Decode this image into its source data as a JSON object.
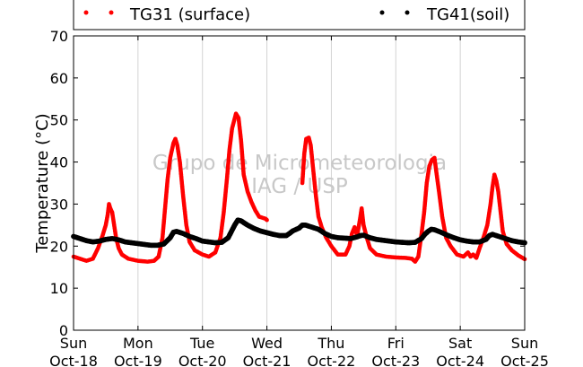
{
  "chart_data": {
    "type": "scatter",
    "title": "",
    "xlabel": "",
    "ylabel": "Temperature (°C)",
    "ylim": [
      0,
      70
    ],
    "yticks": [
      0,
      10,
      20,
      30,
      40,
      50,
      60,
      70
    ],
    "xlim": [
      0,
      7
    ],
    "xtick_labels": [
      {
        "day": "Sun",
        "date": "Oct-18"
      },
      {
        "day": "Mon",
        "date": "Oct-19"
      },
      {
        "day": "Tue",
        "date": "Oct-20"
      },
      {
        "day": "Wed",
        "date": "Oct-21"
      },
      {
        "day": "Thu",
        "date": "Oct-22"
      },
      {
        "day": "Fri",
        "date": "Oct-23"
      },
      {
        "day": "Sat",
        "date": "Oct-24"
      },
      {
        "day": "Sun",
        "date": "Oct-25"
      }
    ],
    "grid": "vertical",
    "legend_position": "top",
    "watermark": [
      "Grupo de Micrometeorologia",
      "IAG / USP"
    ],
    "series": [
      {
        "name": "TG31 (surface)",
        "color": "#ff0000",
        "points": [
          [
            0.0,
            17.5
          ],
          [
            0.1,
            17.0
          ],
          [
            0.2,
            16.5
          ],
          [
            0.3,
            17.0
          ],
          [
            0.38,
            19.5
          ],
          [
            0.45,
            22.5
          ],
          [
            0.5,
            25.0
          ],
          [
            0.53,
            27.5
          ],
          [
            0.55,
            30.0
          ],
          [
            0.57,
            29.0
          ],
          [
            0.6,
            28.0
          ],
          [
            0.63,
            25.0
          ],
          [
            0.66,
            22.0
          ],
          [
            0.7,
            19.5
          ],
          [
            0.75,
            18.0
          ],
          [
            0.85,
            17.0
          ],
          [
            1.0,
            16.5
          ],
          [
            1.15,
            16.3
          ],
          [
            1.25,
            16.5
          ],
          [
            1.32,
            17.5
          ],
          [
            1.38,
            22.0
          ],
          [
            1.42,
            29.0
          ],
          [
            1.46,
            36.0
          ],
          [
            1.5,
            41.0
          ],
          [
            1.55,
            44.5
          ],
          [
            1.58,
            45.5
          ],
          [
            1.61,
            44.0
          ],
          [
            1.65,
            40.0
          ],
          [
            1.7,
            32.0
          ],
          [
            1.75,
            25.0
          ],
          [
            1.8,
            21.0
          ],
          [
            1.88,
            19.0
          ],
          [
            2.0,
            18.0
          ],
          [
            2.1,
            17.5
          ],
          [
            2.2,
            18.5
          ],
          [
            2.28,
            22.0
          ],
          [
            2.33,
            28.0
          ],
          [
            2.38,
            36.0
          ],
          [
            2.42,
            43.0
          ],
          [
            2.46,
            48.0
          ],
          [
            2.52,
            51.5
          ],
          [
            2.56,
            50.5
          ],
          [
            2.6,
            45.0
          ],
          [
            2.64,
            37.0
          ],
          [
            2.7,
            33.0
          ],
          [
            2.76,
            30.5
          ],
          [
            2.82,
            28.5
          ],
          [
            2.88,
            27.0
          ],
          [
            2.98,
            26.5
          ],
          [
            3.0,
            26.2
          ],
          [
            3.55,
            35.0
          ],
          [
            3.58,
            42.0
          ],
          [
            3.61,
            45.5
          ],
          [
            3.65,
            45.8
          ],
          [
            3.68,
            44.0
          ],
          [
            3.72,
            38.0
          ],
          [
            3.76,
            32.0
          ],
          [
            3.8,
            27.0
          ],
          [
            3.85,
            24.5
          ],
          [
            3.92,
            22.0
          ],
          [
            4.0,
            20.0
          ],
          [
            4.1,
            18.0
          ],
          [
            4.22,
            18.0
          ],
          [
            4.28,
            20.0
          ],
          [
            4.32,
            23.0
          ],
          [
            4.36,
            24.5
          ],
          [
            4.4,
            22.5
          ],
          [
            4.44,
            26.0
          ],
          [
            4.47,
            29.0
          ],
          [
            4.5,
            25.0
          ],
          [
            4.55,
            22.0
          ],
          [
            4.6,
            19.5
          ],
          [
            4.7,
            18.0
          ],
          [
            4.85,
            17.5
          ],
          [
            5.0,
            17.3
          ],
          [
            5.15,
            17.2
          ],
          [
            5.25,
            17.0
          ],
          [
            5.3,
            16.3
          ],
          [
            5.35,
            17.5
          ],
          [
            5.4,
            23.0
          ],
          [
            5.44,
            28.0
          ],
          [
            5.48,
            35.0
          ],
          [
            5.52,
            39.0
          ],
          [
            5.56,
            40.5
          ],
          [
            5.6,
            41.0
          ],
          [
            5.63,
            37.5
          ],
          [
            5.67,
            33.0
          ],
          [
            5.72,
            27.0
          ],
          [
            5.78,
            22.0
          ],
          [
            5.85,
            20.0
          ],
          [
            5.95,
            18.0
          ],
          [
            6.05,
            17.5
          ],
          [
            6.12,
            18.5
          ],
          [
            6.16,
            17.5
          ],
          [
            6.2,
            18.0
          ],
          [
            6.25,
            17.2
          ],
          [
            6.3,
            19.5
          ],
          [
            6.36,
            22.0
          ],
          [
            6.42,
            25.0
          ],
          [
            6.47,
            30.0
          ],
          [
            6.5,
            34.0
          ],
          [
            6.53,
            37.0
          ],
          [
            6.56,
            35.5
          ],
          [
            6.59,
            33.0
          ],
          [
            6.62,
            29.0
          ],
          [
            6.66,
            23.5
          ],
          [
            6.72,
            20.5
          ],
          [
            6.8,
            19.0
          ],
          [
            6.9,
            17.8
          ],
          [
            7.0,
            16.9
          ]
        ]
      },
      {
        "name": "TG41(soil)",
        "color": "#000000",
        "points": [
          [
            0.0,
            22.3
          ],
          [
            0.1,
            21.8
          ],
          [
            0.2,
            21.3
          ],
          [
            0.3,
            21.0
          ],
          [
            0.4,
            21.2
          ],
          [
            0.5,
            21.6
          ],
          [
            0.6,
            21.8
          ],
          [
            0.7,
            21.5
          ],
          [
            0.8,
            21.0
          ],
          [
            0.9,
            20.8
          ],
          [
            1.0,
            20.6
          ],
          [
            1.1,
            20.4
          ],
          [
            1.2,
            20.2
          ],
          [
            1.3,
            20.2
          ],
          [
            1.4,
            20.5
          ],
          [
            1.5,
            22.0
          ],
          [
            1.55,
            23.3
          ],
          [
            1.6,
            23.5
          ],
          [
            1.7,
            23.0
          ],
          [
            1.8,
            22.3
          ],
          [
            1.9,
            21.8
          ],
          [
            2.0,
            21.2
          ],
          [
            2.1,
            21.0
          ],
          [
            2.2,
            20.8
          ],
          [
            2.3,
            20.9
          ],
          [
            2.4,
            22.0
          ],
          [
            2.45,
            23.5
          ],
          [
            2.5,
            25.0
          ],
          [
            2.55,
            26.2
          ],
          [
            2.6,
            26.0
          ],
          [
            2.7,
            25.0
          ],
          [
            2.8,
            24.2
          ],
          [
            2.9,
            23.6
          ],
          [
            3.0,
            23.2
          ],
          [
            3.1,
            22.8
          ],
          [
            3.2,
            22.5
          ],
          [
            3.3,
            22.5
          ],
          [
            3.35,
            23.0
          ],
          [
            3.4,
            23.6
          ],
          [
            3.5,
            24.3
          ],
          [
            3.55,
            25.0
          ],
          [
            3.6,
            25.0
          ],
          [
            3.7,
            24.5
          ],
          [
            3.8,
            24.0
          ],
          [
            3.9,
            23.0
          ],
          [
            4.0,
            22.3
          ],
          [
            4.1,
            22.0
          ],
          [
            4.2,
            21.9
          ],
          [
            4.3,
            21.8
          ],
          [
            4.4,
            22.2
          ],
          [
            4.45,
            22.5
          ],
          [
            4.5,
            22.6
          ],
          [
            4.6,
            22.0
          ],
          [
            4.7,
            21.6
          ],
          [
            4.8,
            21.4
          ],
          [
            4.9,
            21.2
          ],
          [
            5.0,
            21.0
          ],
          [
            5.1,
            20.9
          ],
          [
            5.2,
            20.8
          ],
          [
            5.3,
            20.9
          ],
          [
            5.4,
            21.8
          ],
          [
            5.45,
            22.8
          ],
          [
            5.5,
            23.5
          ],
          [
            5.55,
            24.0
          ],
          [
            5.6,
            23.9
          ],
          [
            5.7,
            23.3
          ],
          [
            5.8,
            22.6
          ],
          [
            5.9,
            22.0
          ],
          [
            6.0,
            21.5
          ],
          [
            6.1,
            21.2
          ],
          [
            6.2,
            21.0
          ],
          [
            6.3,
            21.0
          ],
          [
            6.4,
            21.6
          ],
          [
            6.45,
            22.5
          ],
          [
            6.5,
            22.8
          ],
          [
            6.6,
            22.3
          ],
          [
            6.7,
            21.8
          ],
          [
            6.8,
            21.3
          ],
          [
            6.9,
            21.0
          ],
          [
            7.0,
            20.8
          ]
        ]
      }
    ]
  }
}
